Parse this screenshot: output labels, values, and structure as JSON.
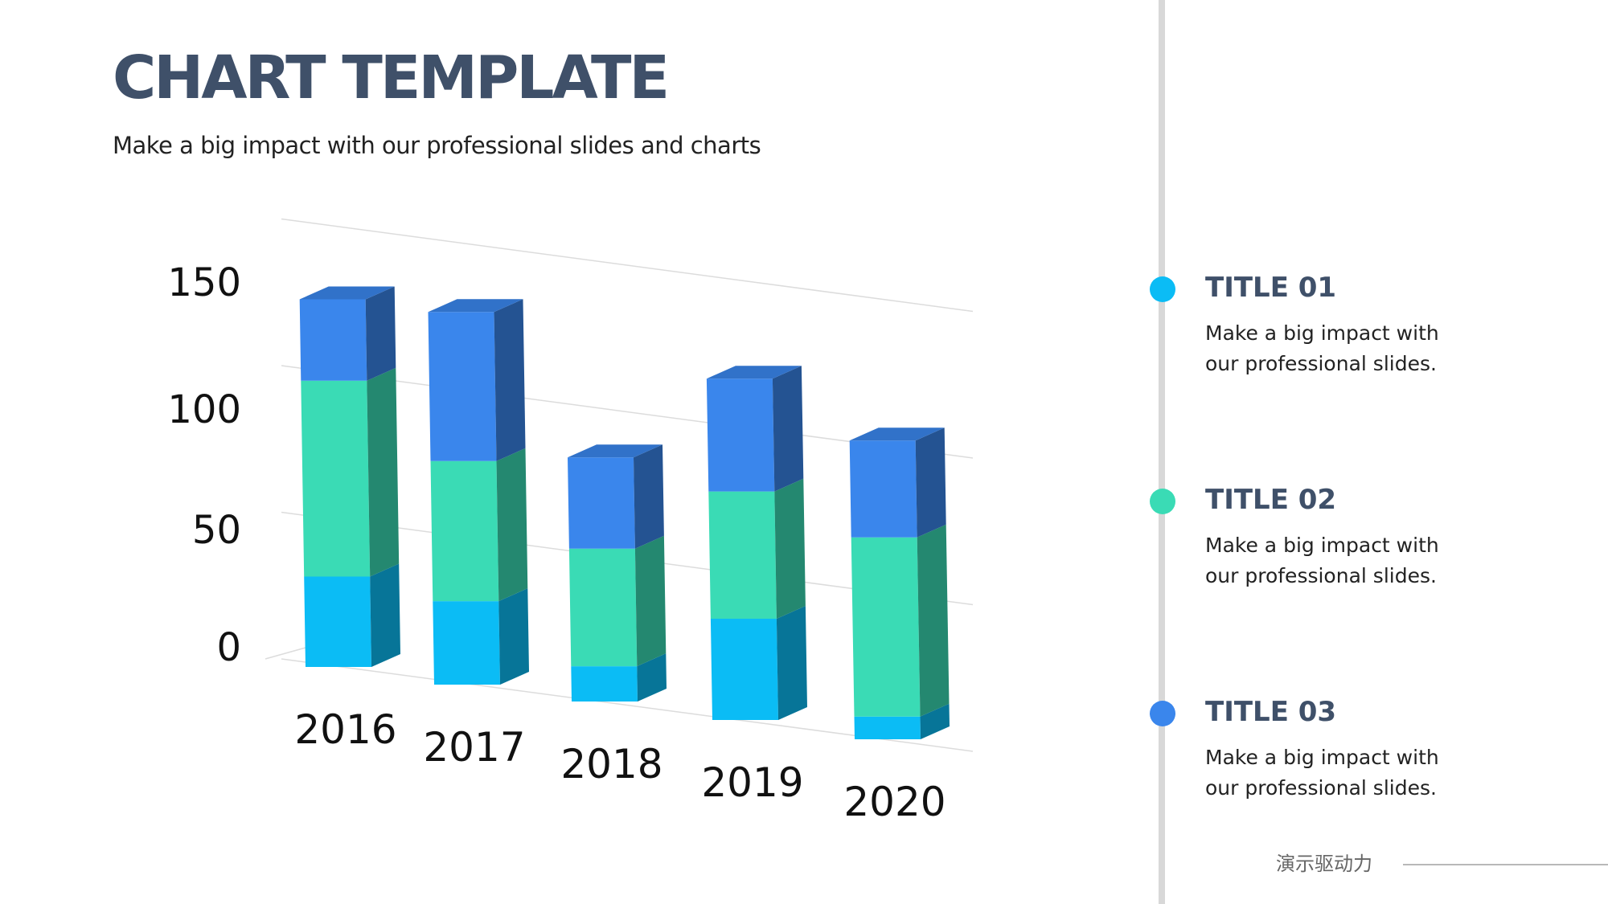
{
  "header": {
    "title": "CHART TEMPLATE",
    "subtitle": "Make a big impact with our professional slides and charts"
  },
  "chart_data": {
    "type": "bar",
    "stacked": true,
    "style": "3d",
    "categories": [
      "2016",
      "2017",
      "2018",
      "2019",
      "2020"
    ],
    "series": [
      {
        "name": "TITLE 01",
        "color": "#0bbcf5",
        "values": [
          30,
          28,
          12,
          35,
          8
        ]
      },
      {
        "name": "TITLE 02",
        "color": "#3adbb5",
        "values": [
          65,
          47,
          40,
          44,
          63
        ]
      },
      {
        "name": "TITLE 03",
        "color": "#3a86ec",
        "values": [
          27,
          50,
          31,
          39,
          34
        ]
      }
    ],
    "yticks": [
      0,
      50,
      100,
      150
    ],
    "ylim": [
      0,
      150
    ],
    "grid": true
  },
  "legend": [
    {
      "title": "TITLE 01",
      "desc": "Make a big impact with our professional slides.",
      "color": "#0bbcf5"
    },
    {
      "title": "TITLE 02",
      "desc": "Make a big impact with our professional slides.",
      "color": "#3adbb5"
    },
    {
      "title": "TITLE 03",
      "desc": "Make a big impact with our professional slides.",
      "color": "#3a86ec"
    }
  ],
  "footer": {
    "text": "演示驱动力"
  }
}
